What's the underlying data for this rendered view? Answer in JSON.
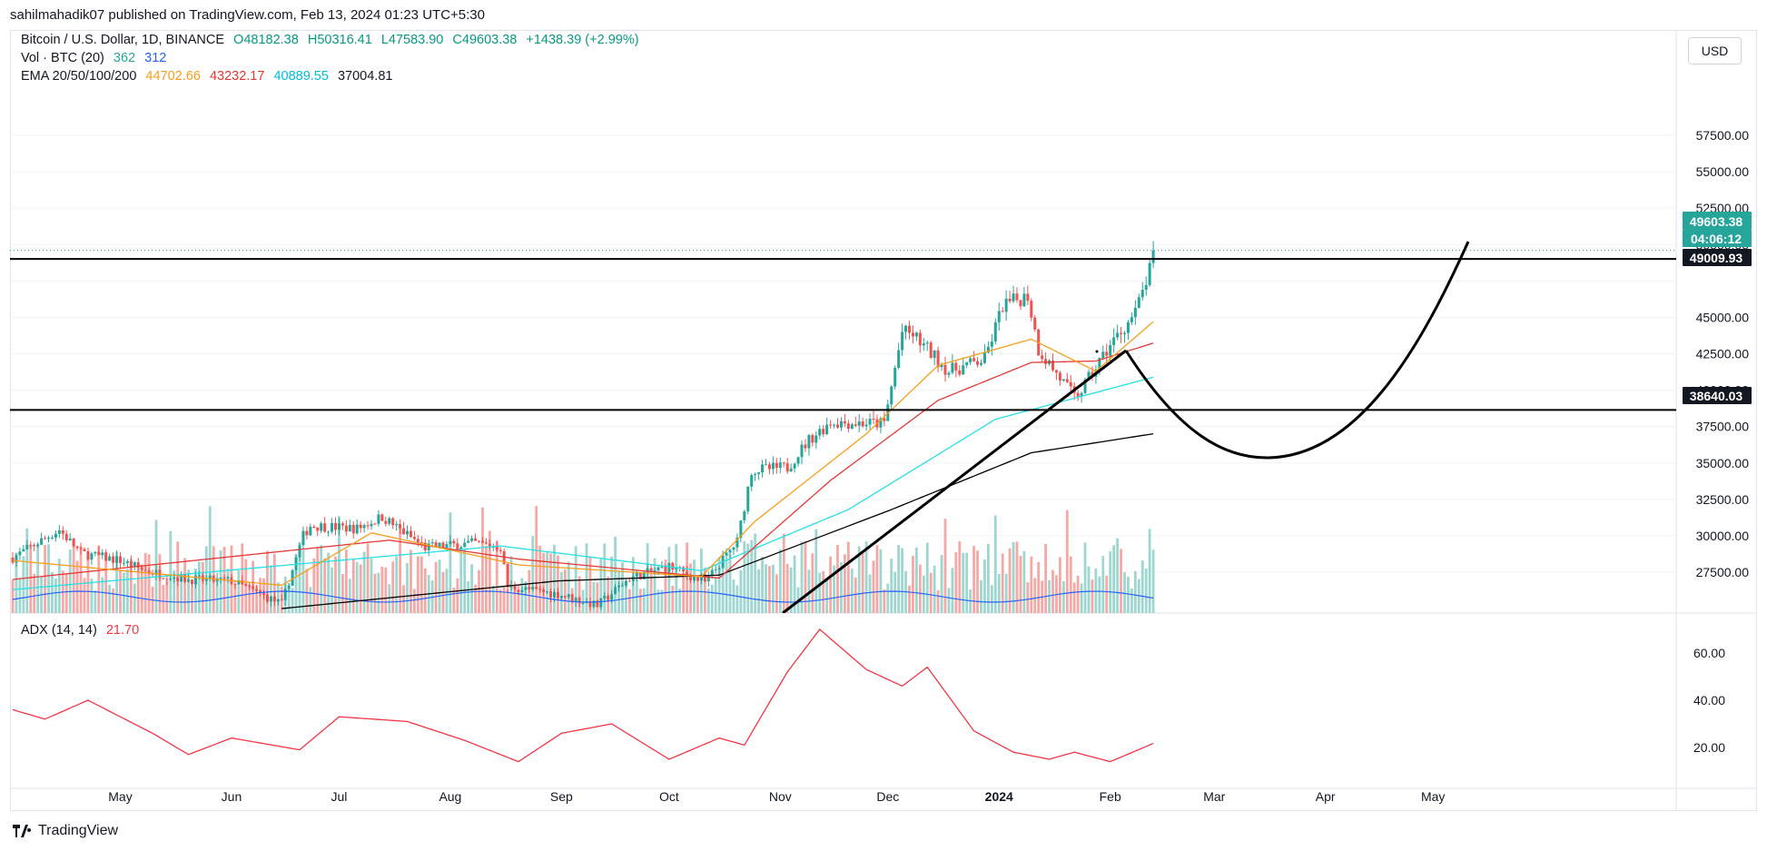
{
  "header": {
    "publisher_line": "sahilmahadik07 published on TradingView.com, Feb 13, 2024 01:23 UTC+5:30"
  },
  "legend": {
    "symbol": "Bitcoin / U.S. Dollar, 1D, BINANCE",
    "o": "O48182.38",
    "h": "H50316.41",
    "l": "L47583.90",
    "c": "C49603.38",
    "change": "+1438.39 (+2.99%)",
    "vol_label": "Vol · BTC (20)",
    "vol_v1": "362",
    "vol_v2": "312",
    "ema_label": "EMA 20/50/100/200",
    "ema20": "44702.66",
    "ema50": "43232.17",
    "ema100": "40889.55",
    "ema200": "37004.81",
    "adx_label": "ADX (14, 14)",
    "adx_val": "21.70"
  },
  "currency_button": "USD",
  "price_axis": [
    "57500.00",
    "55000.00",
    "52500.00",
    "50000.00",
    "45000.00",
    "42500.00",
    "40000.00",
    "37500.00",
    "35000.00",
    "32500.00",
    "30000.00",
    "27500.00"
  ],
  "price_tags": {
    "last": "49603.38",
    "countdown": "04:06:12",
    "level_high": "49009.93",
    "level_low": "38640.03"
  },
  "adx_axis": [
    "60.00",
    "40.00",
    "20.00"
  ],
  "time_axis": [
    "May",
    "Jun",
    "Jul",
    "Aug",
    "Sep",
    "Oct",
    "Nov",
    "Dec",
    "2024",
    "Feb",
    "Mar",
    "Apr",
    "May"
  ],
  "footer_brand": "TradingView",
  "colors": {
    "up": "#26a69a",
    "down": "#ef5350",
    "ema20": "#f59f1c",
    "ema50": "#e53935",
    "ema100": "#26e0e6",
    "ema200": "#000000",
    "adx": "#f23645",
    "vol_ma": "#2962ff"
  },
  "chart_data": {
    "type": "candlestick",
    "title": "Bitcoin / U.S. Dollar, 1D, BINANCE",
    "x_range": [
      "2023-04-01",
      "2024-05-31"
    ],
    "ylim": [
      25000,
      59000
    ],
    "horizontal_levels": [
      49009.93,
      38640.03
    ],
    "last_close": 49603.38,
    "price_path": [
      [
        "2023-04-01",
        28500
      ],
      [
        "2023-04-14",
        30400
      ],
      [
        "2023-04-20",
        28800
      ],
      [
        "2023-05-01",
        28300
      ],
      [
        "2023-05-08",
        27600
      ],
      [
        "2023-05-20",
        27000
      ],
      [
        "2023-06-01",
        26900
      ],
      [
        "2023-06-15",
        25300
      ],
      [
        "2023-06-21",
        30000
      ],
      [
        "2023-06-23",
        30700
      ],
      [
        "2023-07-06",
        30500
      ],
      [
        "2023-07-13",
        31300
      ],
      [
        "2023-07-25",
        29200
      ],
      [
        "2023-08-08",
        29500
      ],
      [
        "2023-08-15",
        29200
      ],
      [
        "2023-08-17",
        26500
      ],
      [
        "2023-08-31",
        26000
      ],
      [
        "2023-09-11",
        25200
      ],
      [
        "2023-09-20",
        27100
      ],
      [
        "2023-10-01",
        27900
      ],
      [
        "2023-10-11",
        26800
      ],
      [
        "2023-10-20",
        29600
      ],
      [
        "2023-10-24",
        34500
      ],
      [
        "2023-11-03",
        34700
      ],
      [
        "2023-11-09",
        36600
      ],
      [
        "2023-11-15",
        37800
      ],
      [
        "2023-11-30",
        37700
      ],
      [
        "2023-12-05",
        44000
      ],
      [
        "2023-12-08",
        43800
      ],
      [
        "2023-12-18",
        41300
      ],
      [
        "2023-12-28",
        42100
      ],
      [
        "2024-01-02",
        45800
      ],
      [
        "2024-01-09",
        46500
      ],
      [
        "2024-01-12",
        42800
      ],
      [
        "2024-01-22",
        39500
      ],
      [
        "2024-01-24",
        40000
      ],
      [
        "2024-02-01",
        43100
      ],
      [
        "2024-02-08",
        45300
      ],
      [
        "2024-02-12",
        48200
      ],
      [
        "2024-02-13",
        49603.38
      ]
    ],
    "ema20": [
      [
        "2023-04-01",
        28300
      ],
      [
        "2023-06-15",
        26600
      ],
      [
        "2023-07-10",
        30200
      ],
      [
        "2023-08-20",
        28000
      ],
      [
        "2023-10-10",
        27200
      ],
      [
        "2023-10-25",
        31000
      ],
      [
        "2023-11-25",
        37000
      ],
      [
        "2023-12-15",
        41700
      ],
      [
        "2024-01-10",
        43500
      ],
      [
        "2024-01-28",
        41300
      ],
      [
        "2024-02-13",
        44702.66
      ]
    ],
    "ema50": [
      [
        "2023-04-01",
        27000
      ],
      [
        "2023-07-15",
        29700
      ],
      [
        "2023-08-20",
        28400
      ],
      [
        "2023-10-15",
        27100
      ],
      [
        "2023-11-15",
        33800
      ],
      [
        "2023-12-15",
        39300
      ],
      [
        "2024-01-10",
        41900
      ],
      [
        "2024-01-28",
        42000
      ],
      [
        "2024-02-13",
        43232.17
      ]
    ],
    "ema100": [
      [
        "2023-04-01",
        26300
      ],
      [
        "2023-08-15",
        29300
      ],
      [
        "2023-10-10",
        27600
      ],
      [
        "2023-11-20",
        31800
      ],
      [
        "2023-12-31",
        38000
      ],
      [
        "2024-02-13",
        40889.55
      ]
    ],
    "ema200": [
      [
        "2023-06-15",
        25000
      ],
      [
        "2023-08-31",
        26900
      ],
      [
        "2023-10-15",
        27300
      ],
      [
        "2023-12-01",
        31700
      ],
      [
        "2024-01-10",
        35700
      ],
      [
        "2024-02-13",
        37004.81
      ]
    ],
    "adx": {
      "ylim": [
        0,
        75
      ],
      "last": 21.7,
      "points": [
        [
          "2023-04-01",
          36
        ],
        [
          "2023-04-10",
          32
        ],
        [
          "2023-04-22",
          40
        ],
        [
          "2023-05-10",
          26
        ],
        [
          "2023-05-20",
          17
        ],
        [
          "2023-06-01",
          24
        ],
        [
          "2023-06-20",
          19
        ],
        [
          "2023-07-01",
          33
        ],
        [
          "2023-07-20",
          31
        ],
        [
          "2023-08-05",
          23
        ],
        [
          "2023-08-20",
          14
        ],
        [
          "2023-09-01",
          26
        ],
        [
          "2023-09-15",
          30
        ],
        [
          "2023-10-01",
          15
        ],
        [
          "2023-10-15",
          24
        ],
        [
          "2023-10-22",
          21
        ],
        [
          "2023-11-03",
          52
        ],
        [
          "2023-11-12",
          70
        ],
        [
          "2023-11-25",
          53
        ],
        [
          "2023-12-05",
          46
        ],
        [
          "2023-12-12",
          54
        ],
        [
          "2023-12-25",
          27
        ],
        [
          "2024-01-05",
          18
        ],
        [
          "2024-01-15",
          15
        ],
        [
          "2024-01-22",
          18
        ],
        [
          "2024-02-01",
          14
        ],
        [
          "2024-02-13",
          21.7
        ]
      ]
    }
  }
}
